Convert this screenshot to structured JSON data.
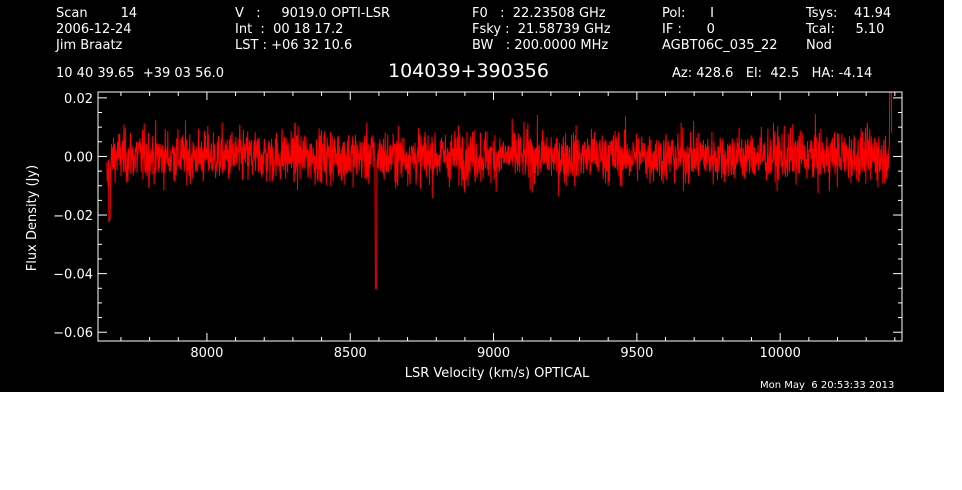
{
  "header": {
    "col1": [
      "Scan        14",
      "2006-12-24",
      "Jim Braatz"
    ],
    "col2": [
      "V   :     9019.0 OPTI-LSR",
      "Int  :  00 18 17.2",
      "LST : +06 32 10.6"
    ],
    "col3": [
      "F0   :  22.23508 GHz",
      "Fsky :  21.58739 GHz",
      "BW   : 200.0000 MHz"
    ],
    "col4": [
      "Pol:      I",
      "IF :      0",
      "AGBT06C_035_22"
    ],
    "col5": [
      "Tsys:    41.94",
      "Tcal:     5.10",
      "Nod"
    ],
    "coords": "10 40 39.65  +39 03 56.0",
    "source": "104039+390356",
    "azel": "Az: 428.6   El:  42.5   HA: -4.14"
  },
  "timestamp": "Mon May  6 20:53:33 2013",
  "colors": {
    "background": "#000000",
    "trace": "#ff0000",
    "axes": "#ffffff"
  },
  "chart_data": {
    "type": "line",
    "xlabel": "LSR Velocity (km/s) OPTICAL",
    "ylabel": "Flux Density (Jy)",
    "xlim": [
      7620,
      10425
    ],
    "ylim": [
      -0.063,
      0.022
    ],
    "xticks": [
      8000,
      8500,
      9000,
      9500,
      10000
    ],
    "xtick_labels": [
      "8000",
      "8500",
      "9000",
      "9500",
      "10000"
    ],
    "yticks": [
      0.02,
      0.0,
      -0.02,
      -0.04,
      -0.06
    ],
    "ytick_labels": [
      "0.02",
      "0.00",
      "−0.02",
      "−0.04",
      "−0.06"
    ],
    "series": [
      {
        "x_start": 7650,
        "x_end": 10390,
        "n_points": 2400,
        "noise_rms_jy": 0.0045,
        "baseline_jy": 0.0,
        "features": [
          {
            "x": 7660,
            "y": -0.017
          },
          {
            "x": 8590,
            "y": -0.045
          },
          {
            "x": 10385,
            "y": 0.018
          }
        ]
      }
    ]
  }
}
